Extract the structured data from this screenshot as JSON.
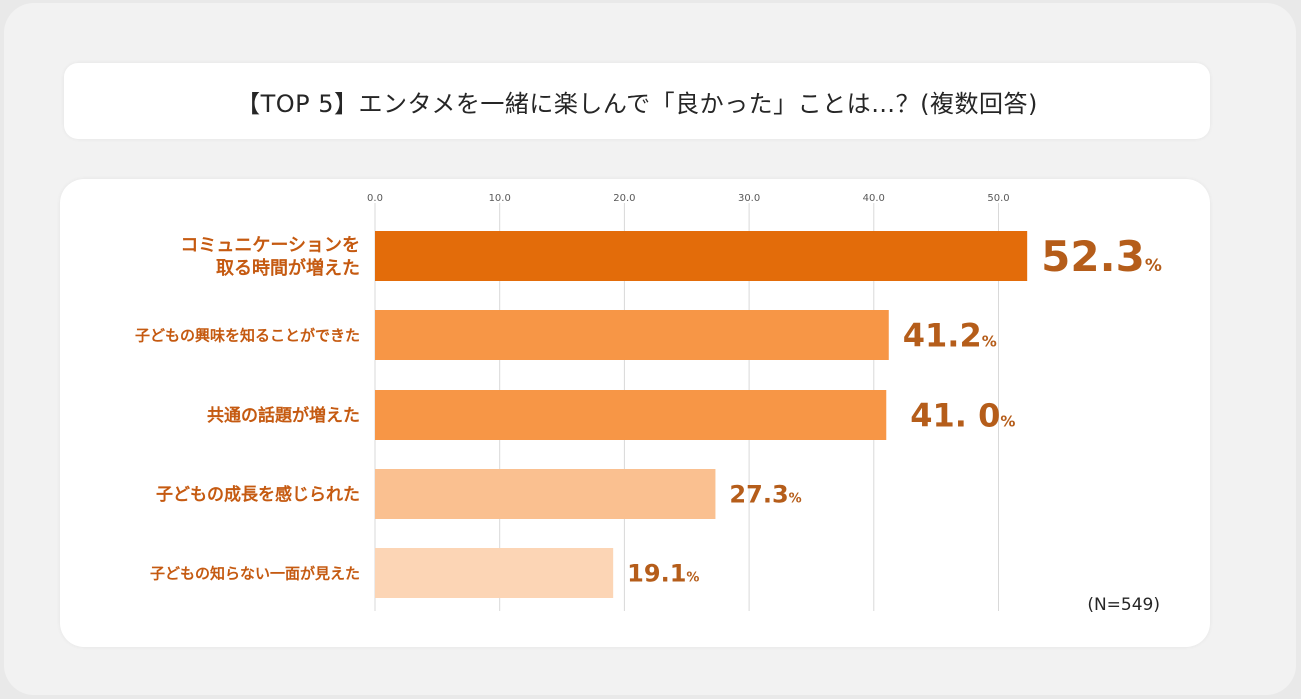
{
  "title": "【TOP 5】エンタメを一緒に楽しんで「良かった」ことは…？(複数回答)",
  "sample_note": "(N=549)",
  "colors": {
    "label": "#c55a11",
    "value": "#b55d1a",
    "tick": "#595959",
    "grid": "#d9d9d9"
  },
  "chart_data": {
    "type": "bar",
    "orientation": "horizontal",
    "categories": [
      "コミュニケーションを\n取る時間が増えた",
      "子どもの興味を知ることができた",
      "共通の話題が増えた",
      "子どもの成長を感じられた",
      "子どもの知らない一面が見えた"
    ],
    "values": [
      52.3,
      41.2,
      41.0,
      27.3,
      19.1
    ],
    "value_labels": [
      "52.3",
      "41.2",
      "41. 0",
      "27.3",
      "19.1"
    ],
    "unit": "%",
    "bar_colors": [
      "#e36c0a",
      "#f79646",
      "#f79646",
      "#fac090",
      "#fcd5b5"
    ],
    "xlim": [
      0,
      55
    ],
    "ticks": [
      "0.0",
      "10.0",
      "20.0",
      "30.0",
      "40.0",
      "50.0"
    ],
    "grid": true,
    "legend": "none"
  }
}
